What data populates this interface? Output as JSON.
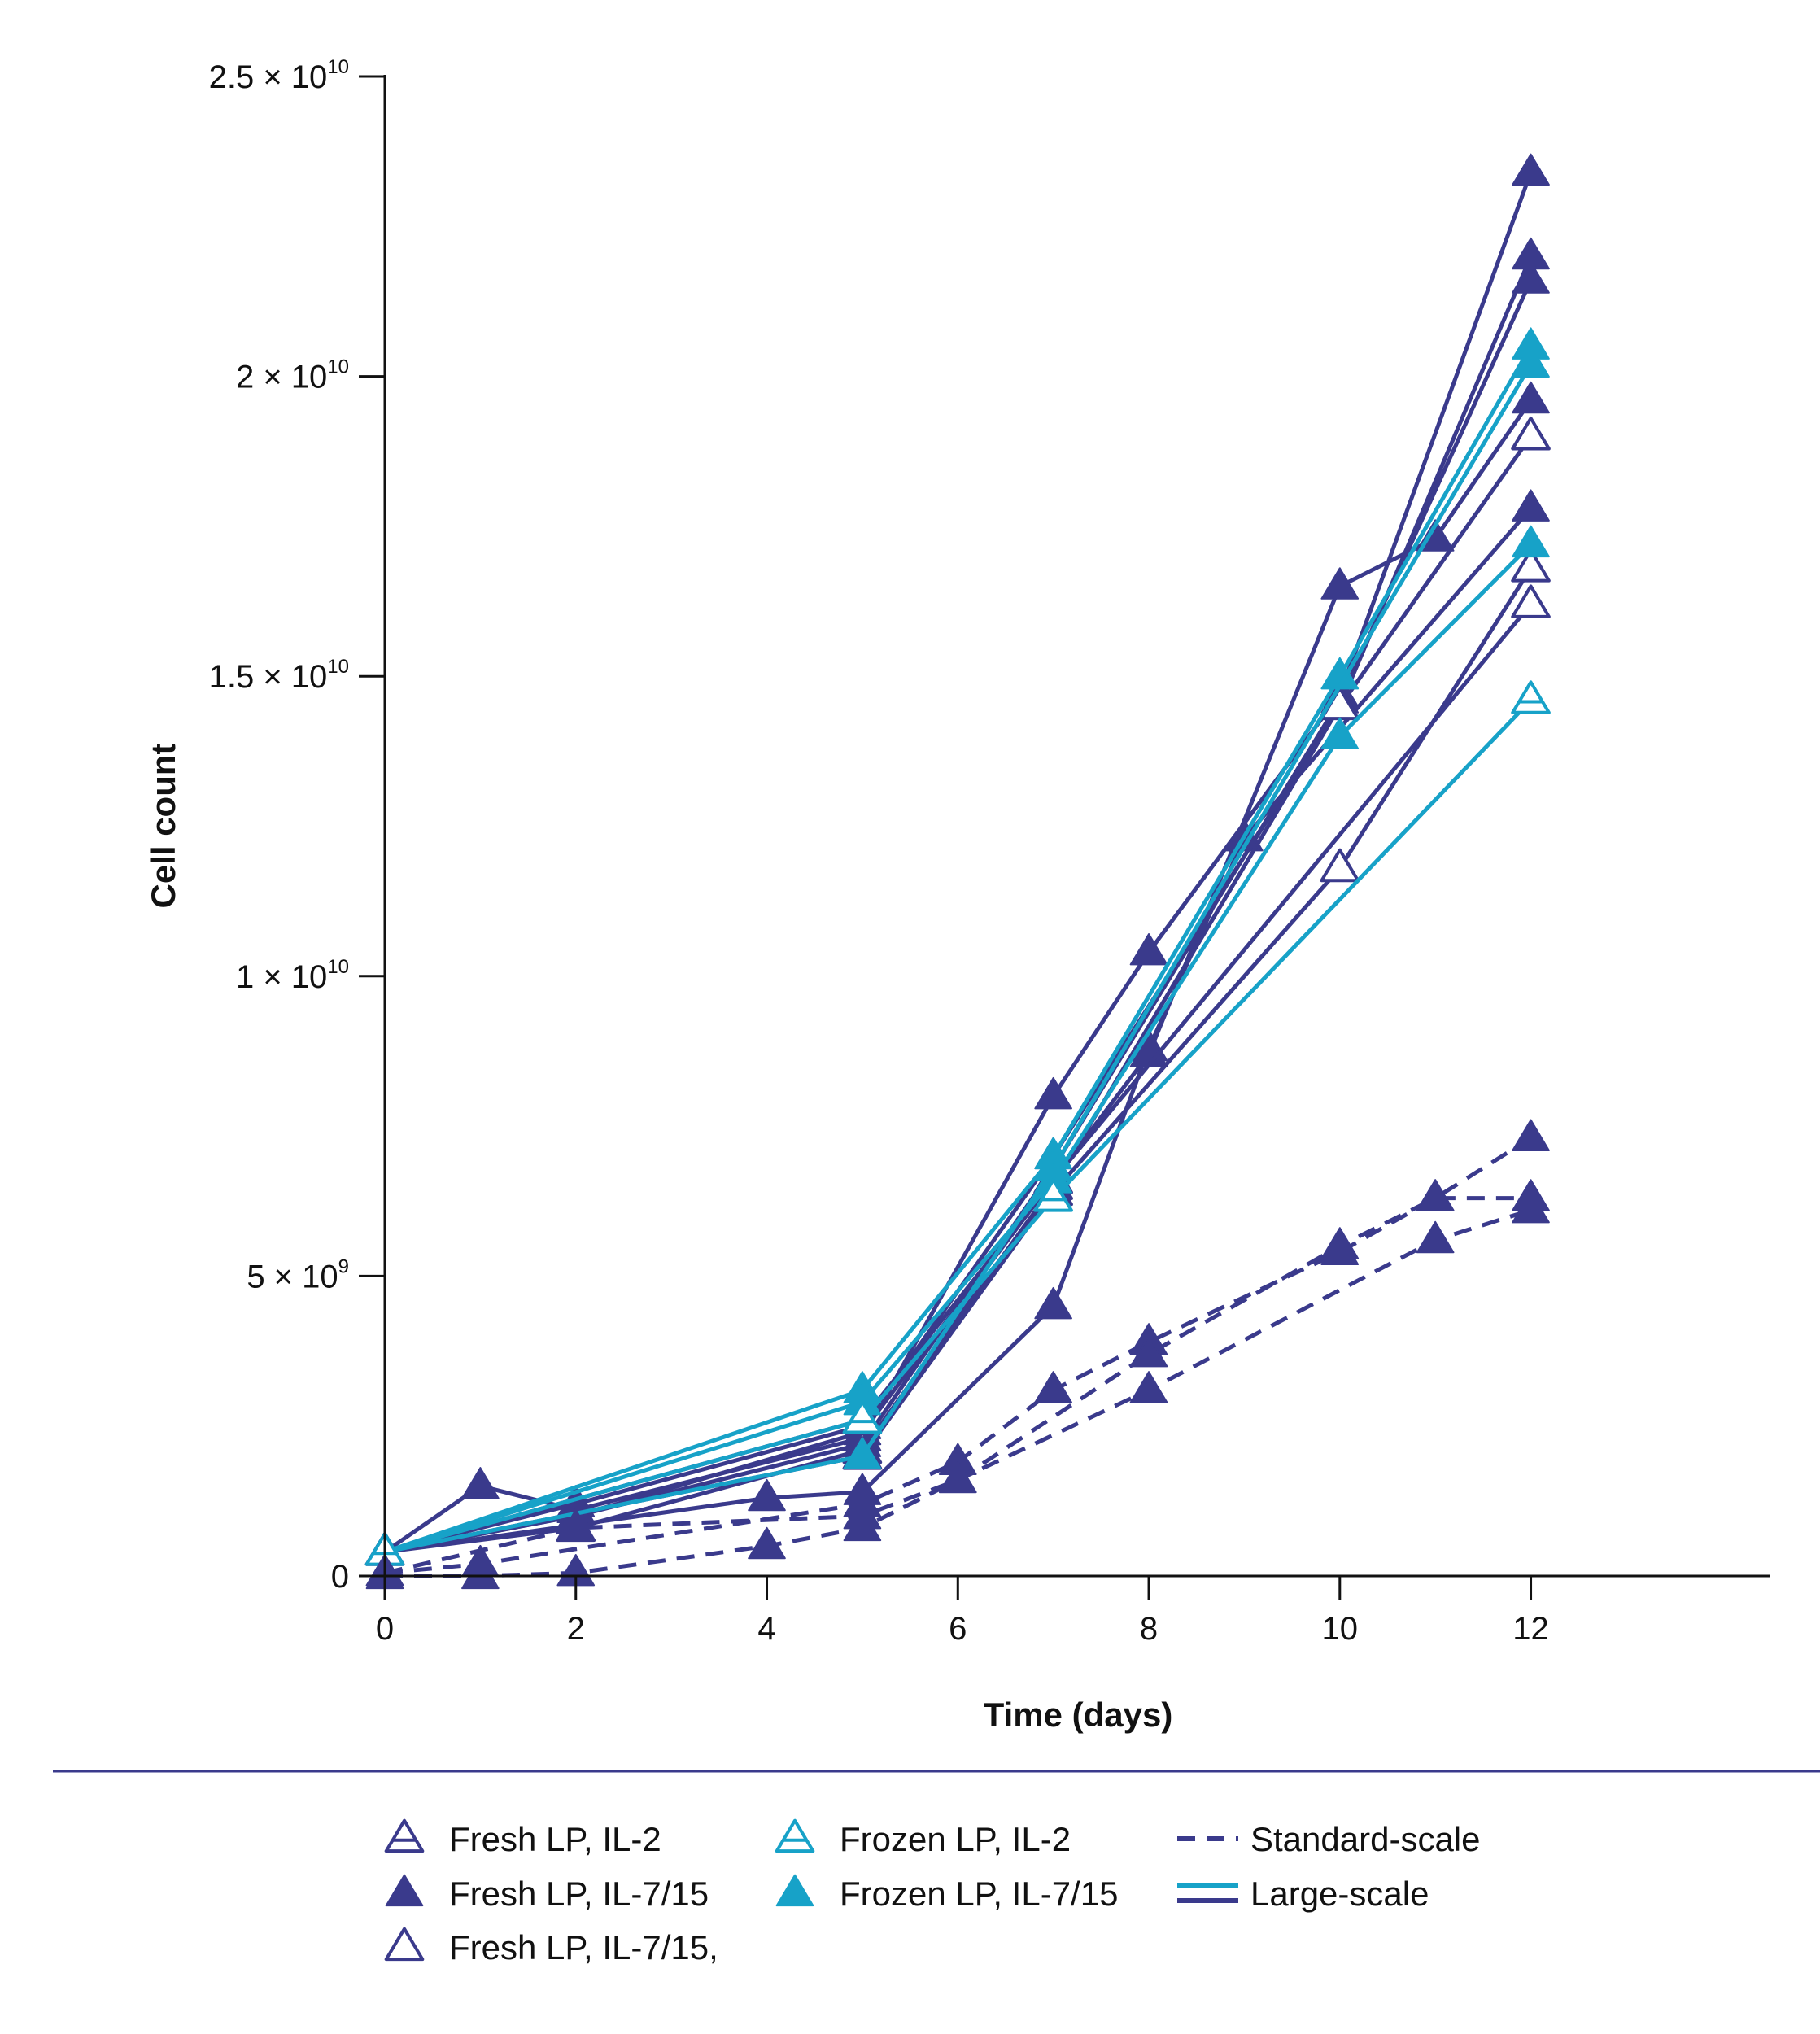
{
  "chart_data": {
    "type": "line",
    "title": "",
    "xlabel": "Time (days)",
    "ylabel": "Cell count",
    "xlim": [
      0,
      14.5
    ],
    "ylim": [
      0,
      25000000000
    ],
    "x_ticks": [
      "0",
      "2",
      "4",
      "6",
      "8",
      "10",
      "12"
    ],
    "y_ticks": [
      {
        "mantissa": "0",
        "exponent": ""
      },
      {
        "mantissa": "5 × 10",
        "exponent": "9"
      },
      {
        "mantissa": "1 × 10",
        "exponent": "10"
      },
      {
        "mantissa": "1.5 × 10",
        "exponent": "10"
      },
      {
        "mantissa": "2 × 10",
        "exponent": "10"
      },
      {
        "mantissa": "2.5 × 10",
        "exponent": "10"
      }
    ],
    "grid": false,
    "legend_position": "bottom",
    "colors": {
      "fresh": "#3a3a8c",
      "frozen": "#17a2c8"
    },
    "legend": {
      "markers": [
        {
          "label": "Fresh LP, IL-2",
          "color": "#3a3a8c",
          "marker": "triangle-hatched"
        },
        {
          "label": "Fresh LP, IL-7/15",
          "color": "#3a3a8c",
          "marker": "triangle-filled"
        },
        {
          "label": "Fresh LP, IL-7/15,",
          "color": "#3a3a8c",
          "marker": "triangle-open"
        },
        {
          "label": "Frozen LP, IL-2",
          "color": "#17a2c8",
          "marker": "triangle-hatched"
        },
        {
          "label": "Frozen LP, IL-7/15",
          "color": "#17a2c8",
          "marker": "triangle-filled"
        }
      ],
      "lines": [
        {
          "label": "Standard-scale",
          "style": "dashed",
          "colors": [
            "#3a3a8c"
          ]
        },
        {
          "label": "Large-scale",
          "style": "solid",
          "colors": [
            "#17a2c8",
            "#3a3a8c"
          ]
        }
      ]
    },
    "series": [
      {
        "group": "fresh",
        "marker": "filled",
        "style": "solid",
        "x": [
          0,
          1,
          2,
          5,
          7,
          8,
          10,
          12
        ],
        "y": [
          400000000,
          1500000000,
          1100000000,
          2300000000,
          8000000000,
          10400000000,
          14700000000,
          23400000000
        ]
      },
      {
        "group": "fresh",
        "marker": "filled",
        "style": "solid",
        "x": [
          0,
          2,
          5,
          7,
          10,
          12
        ],
        "y": [
          400000000,
          1200000000,
          2500000000,
          7000000000,
          14500000000,
          22000000000
        ]
      },
      {
        "group": "fresh",
        "marker": "filled",
        "style": "solid",
        "x": [
          0,
          2,
          5,
          7,
          10,
          12
        ],
        "y": [
          400000000,
          1000000000,
          2200000000,
          6800000000,
          14600000000,
          21600000000
        ]
      },
      {
        "group": "fresh",
        "marker": "filled",
        "style": "solid",
        "x": [
          0,
          2,
          5,
          8,
          10,
          11,
          12
        ],
        "y": [
          400000000,
          1000000000,
          2400000000,
          8700000000,
          16500000000,
          17300000000,
          19600000000
        ]
      },
      {
        "group": "fresh",
        "marker": "filled",
        "style": "solid",
        "x": [
          0,
          4,
          5,
          7,
          8,
          9,
          12
        ],
        "y": [
          400000000,
          1300000000,
          1400000000,
          4500000000,
          8800000000,
          12300000000,
          17800000000
        ]
      },
      {
        "group": "fresh",
        "marker": "open",
        "style": "solid",
        "x": [
          0,
          2,
          5,
          7,
          10,
          12
        ],
        "y": [
          400000000,
          800000000,
          2100000000,
          6500000000,
          14500000000,
          19000000000
        ]
      },
      {
        "group": "fresh",
        "marker": "open",
        "style": "solid",
        "x": [
          0,
          5,
          7,
          10,
          12
        ],
        "y": [
          400000000,
          2000000000,
          6400000000,
          11800000000,
          16800000000
        ]
      },
      {
        "group": "fresh",
        "marker": "open",
        "style": "solid",
        "x": [
          0,
          5,
          7,
          12
        ],
        "y": [
          400000000,
          2600000000,
          6600000000,
          16200000000
        ]
      },
      {
        "group": "frozen",
        "marker": "filled",
        "style": "solid",
        "x": [
          0,
          5,
          7,
          10,
          12
        ],
        "y": [
          400000000,
          3100000000,
          7000000000,
          15000000000,
          20500000000
        ]
      },
      {
        "group": "frozen",
        "marker": "filled",
        "style": "solid",
        "x": [
          0,
          5,
          7,
          12
        ],
        "y": [
          400000000,
          2000000000,
          6800000000,
          20200000000
        ]
      },
      {
        "group": "frozen",
        "marker": "filled",
        "style": "solid",
        "x": [
          0,
          5,
          7,
          10,
          12
        ],
        "y": [
          400000000,
          2900000000,
          6600000000,
          14000000000,
          17200000000
        ]
      },
      {
        "group": "frozen",
        "marker": "hatched",
        "style": "solid",
        "x": [
          0,
          5,
          7,
          12
        ],
        "y": [
          400000000,
          2600000000,
          6300000000,
          14600000000
        ]
      },
      {
        "group": "fresh",
        "marker": "filled",
        "style": "dashed",
        "x": [
          0,
          1,
          5,
          6,
          7,
          8,
          10,
          11,
          12
        ],
        "y": [
          50000000,
          200000000,
          1200000000,
          1900000000,
          3100000000,
          3900000000,
          5400000000,
          6300000000,
          7300000000
        ]
      },
      {
        "group": "fresh",
        "marker": "filled",
        "style": "dashed",
        "x": [
          0,
          2,
          5,
          6,
          8,
          10,
          11,
          12
        ],
        "y": [
          50000000,
          800000000,
          1000000000,
          1600000000,
          3700000000,
          5500000000,
          6300000000,
          6300000000
        ]
      },
      {
        "group": "fresh",
        "marker": "filled",
        "style": "dashed",
        "x": [
          0,
          1,
          2,
          4,
          5,
          6,
          8,
          11,
          12
        ],
        "y": [
          0,
          0,
          50000000,
          500000000,
          800000000,
          1600000000,
          3100000000,
          5600000000,
          6100000000
        ]
      }
    ]
  }
}
